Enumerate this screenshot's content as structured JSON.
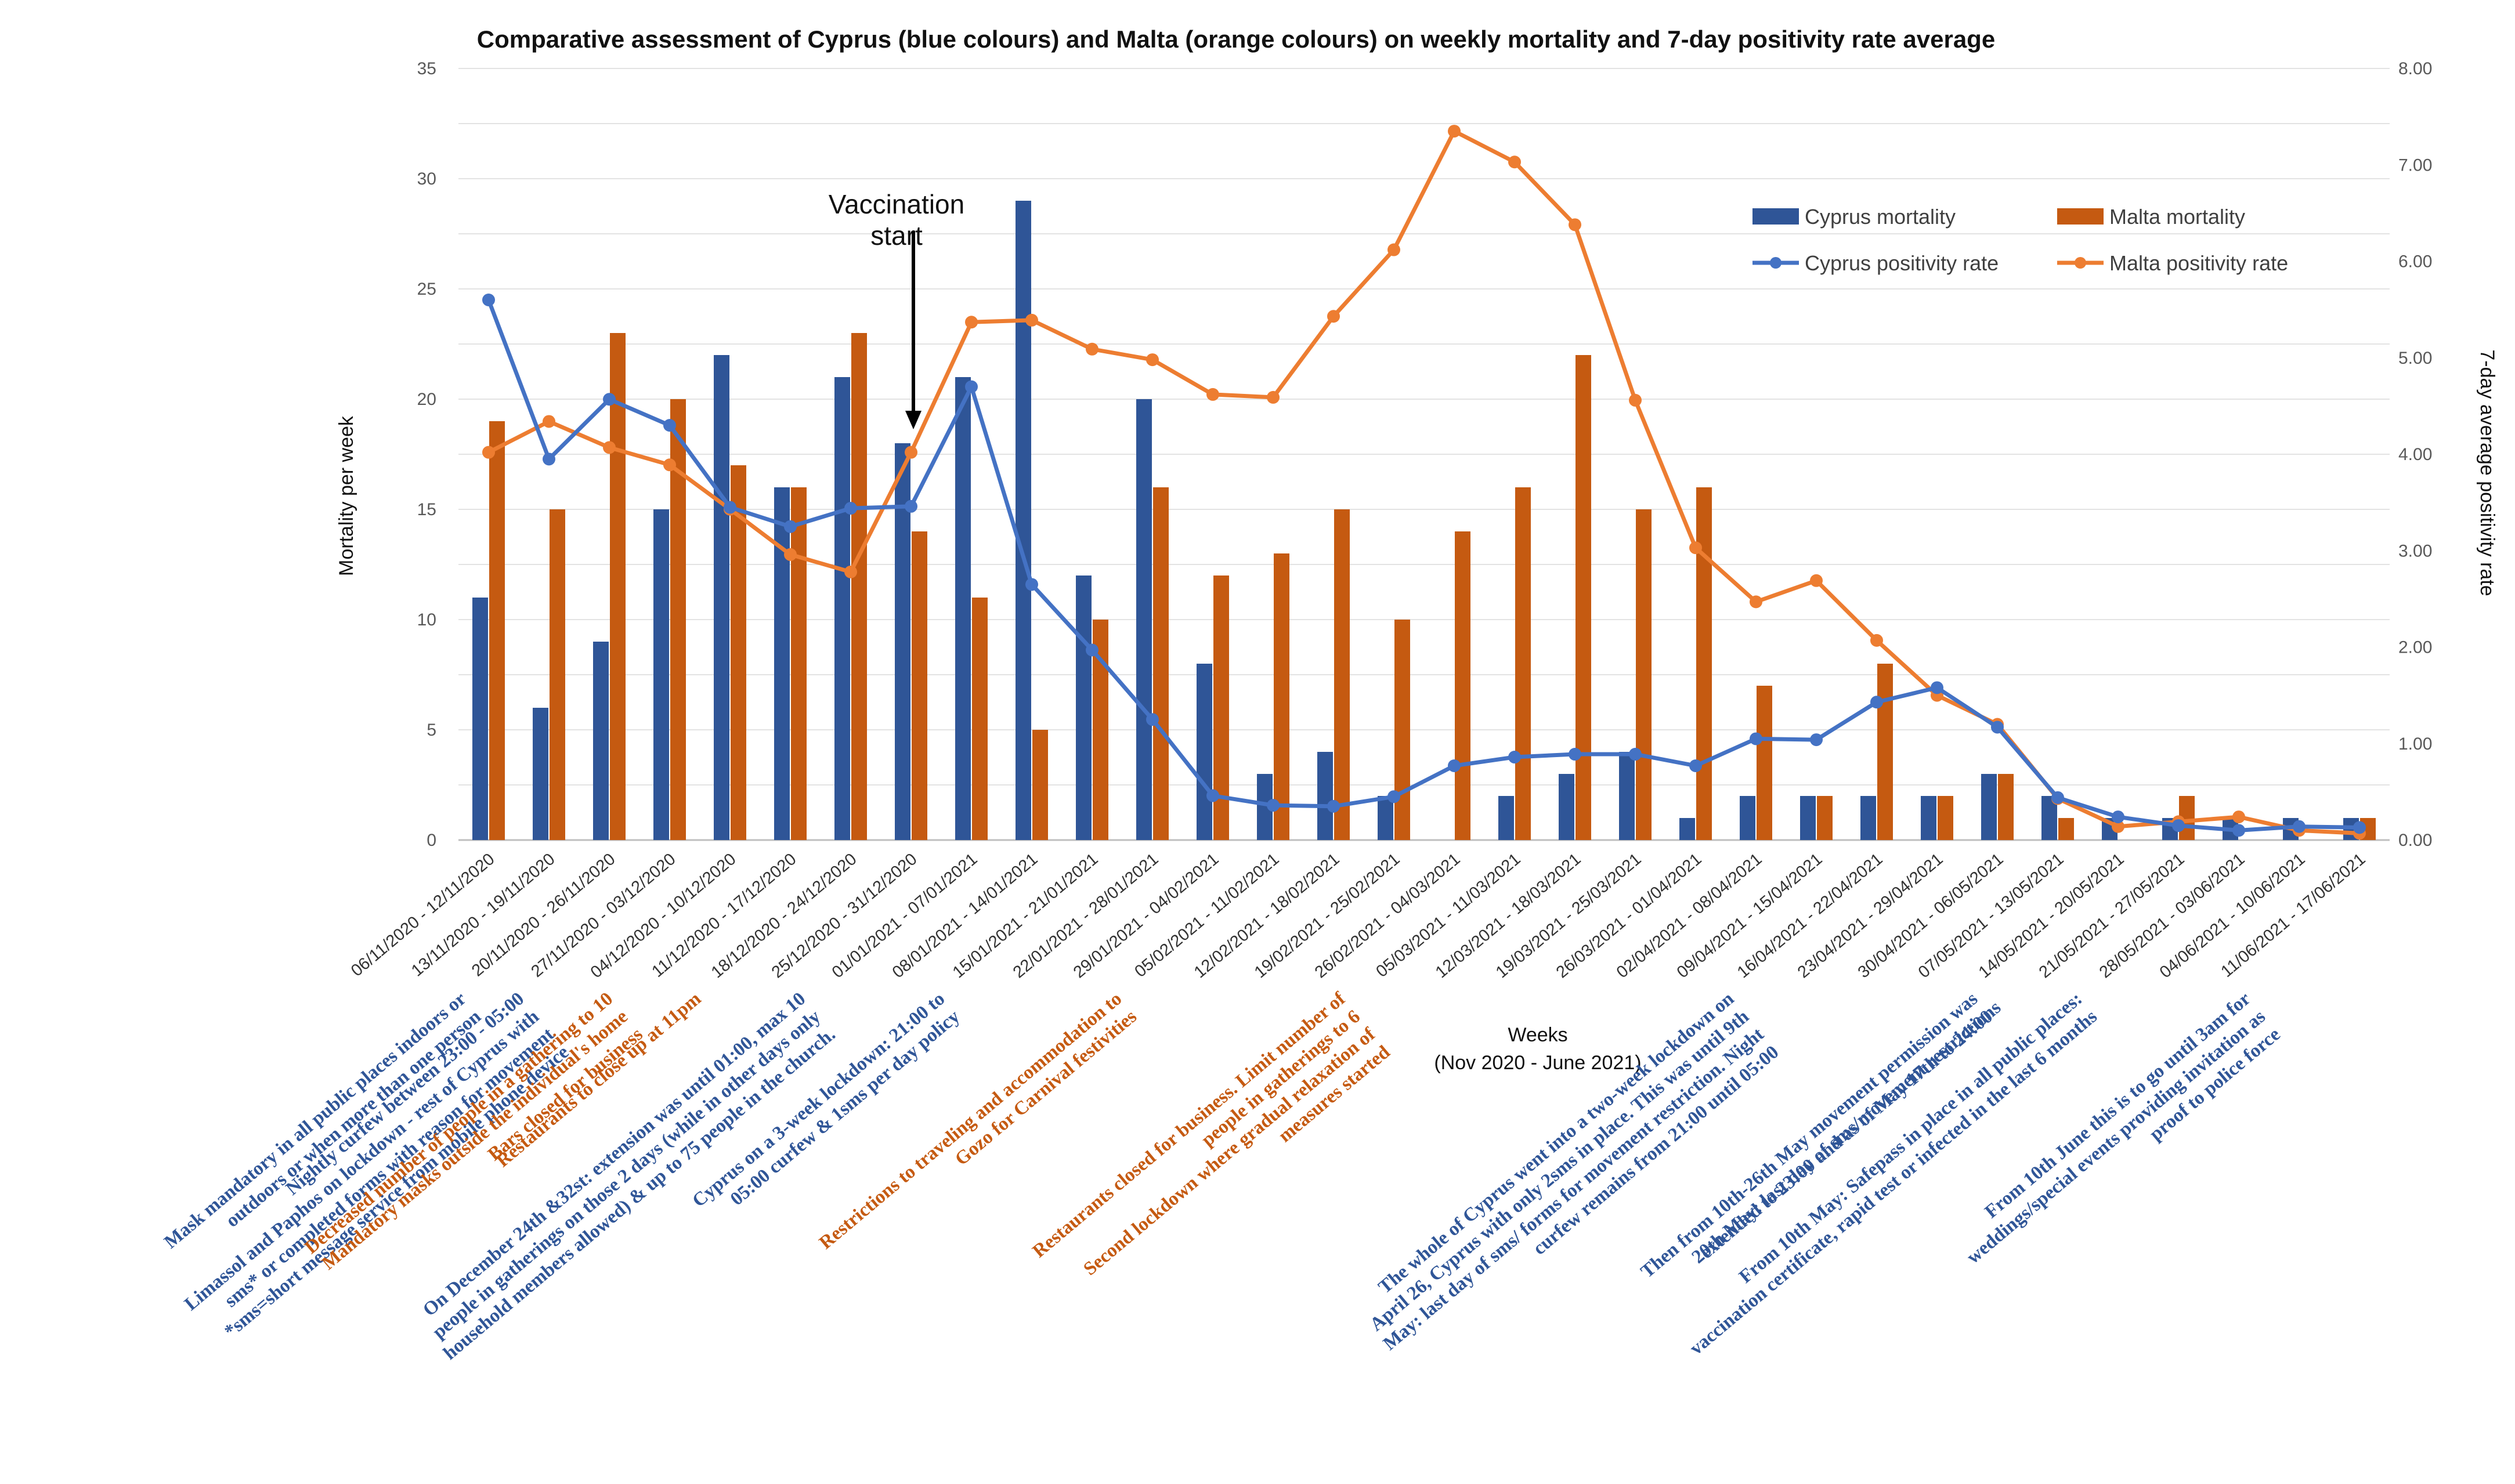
{
  "chart_data": {
    "type": "bar",
    "title": "Comparative assessment of Cyprus (blue colours) and Malta (orange colours) on weekly mortality and 7-day positivity rate average",
    "ylabel": "Mortality per week",
    "y2label": "7-day average positivity rate",
    "xlabel": "Weeks",
    "xlabel_sub": "(Nov 2020 - June 2021)",
    "ylim": [
      0,
      35
    ],
    "y2lim": [
      0,
      8
    ],
    "yticks": [
      "0",
      "5",
      "10",
      "15",
      "20",
      "25",
      "30",
      "35"
    ],
    "y2ticks": [
      "0.00",
      "1.00",
      "2.00",
      "3.00",
      "4.00",
      "5.00",
      "6.00",
      "7.00",
      "8.00"
    ],
    "colors": {
      "cyprus_bar": "#2F5597",
      "malta_bar": "#C55A11",
      "cyprus_line": "#4472C4",
      "malta_line": "#ED7D31",
      "annot_blue": "#2F5597",
      "annot_orange": "#C55A11"
    },
    "categories": [
      "06/11/2020 - 12/11/2020",
      "13/11/2020 - 19/11/2020",
      "20/11/2020 - 26/11/2020",
      "27/11/2020 - 03/12/2020",
      "04/12/2020 - 10/12/2020",
      "11/12/2020 - 17/12/2020",
      "18/12/2020 - 24/12/2020",
      "25/12/2020 - 31/12/2020",
      "01/01/2021 - 07/01/2021",
      "08/01/2021 - 14/01/2021",
      "15/01/2021 - 21/01/2021",
      "22/01/2021 - 28/01/2021",
      "29/01/2021 - 04/02/2021",
      "05/02/2021 - 11/02/2021",
      "12/02/2021 - 18/02/2021",
      "19/02/2021 - 25/02/2021",
      "26/02/2021 - 04/03/2021",
      "05/03/2021 - 11/03/2021",
      "12/03/2021 - 18/03/2021",
      "19/03/2021 - 25/03/2021",
      "26/03/2021 - 01/04/2021",
      "02/04/2021 - 08/04/2021",
      "09/04/2021 - 15/04/2021",
      "16/04/2021 - 22/04/2021",
      "23/04/2021 - 29/04/2021",
      "30/04/2021 - 06/05/2021",
      "07/05/2021 - 13/05/2021",
      "14/05/2021 - 20/05/2021",
      "21/05/2021 - 27/05/2021",
      "28/05/2021 - 03/06/2021",
      "04/06/2021 - 10/06/2021",
      "11/06/2021 - 17/06/2021"
    ],
    "series": [
      {
        "name": "Cyprus mortality",
        "kind": "bar",
        "axis": "left",
        "values": [
          11,
          6,
          9,
          15,
          22,
          16,
          21,
          18,
          21,
          29,
          12,
          20,
          8,
          3,
          4,
          2,
          0,
          2,
          3,
          4,
          1,
          2,
          2,
          2,
          2,
          3,
          2,
          1,
          1,
          1,
          1,
          1
        ]
      },
      {
        "name": "Malta mortality",
        "kind": "bar",
        "axis": "left",
        "values": [
          19,
          15,
          23,
          20,
          17,
          16,
          23,
          14,
          11,
          5,
          10,
          16,
          12,
          13,
          15,
          10,
          14,
          16,
          22,
          15,
          16,
          7,
          2,
          8,
          2,
          3,
          1,
          0,
          2,
          0,
          0,
          1
        ]
      },
      {
        "name": "Cyprus positivity rate",
        "kind": "line",
        "axis": "right",
        "values": [
          5.6,
          3.95,
          4.57,
          4.3,
          3.45,
          3.25,
          3.44,
          3.46,
          4.7,
          2.65,
          1.97,
          1.25,
          0.46,
          0.36,
          0.35,
          0.45,
          0.77,
          0.86,
          0.89,
          0.89,
          0.77,
          1.05,
          1.04,
          1.43,
          1.58,
          1.17,
          0.44,
          0.24,
          0.15,
          0.1,
          0.14,
          0.13
        ]
      },
      {
        "name": "Malta positivity rate",
        "kind": "line",
        "axis": "right",
        "values": [
          4.02,
          4.34,
          4.07,
          3.89,
          3.43,
          2.96,
          2.78,
          4.02,
          5.37,
          5.39,
          5.09,
          4.98,
          4.62,
          4.59,
          5.43,
          6.12,
          7.35,
          7.03,
          6.38,
          4.56,
          3.03,
          2.47,
          2.69,
          2.07,
          1.5,
          1.2,
          0.43,
          0.14,
          0.19,
          0.24,
          0.1,
          0.07
        ]
      }
    ],
    "legend": [
      {
        "label": "Cyprus mortality",
        "kind": "bar",
        "color": "#2F5597"
      },
      {
        "label": "Malta mortality",
        "kind": "bar",
        "color": "#C55A11"
      },
      {
        "label": "Cyprus positivity rate",
        "kind": "line",
        "color": "#4472C4"
      },
      {
        "label": "Malta positivity rate",
        "kind": "line",
        "color": "#ED7D31"
      }
    ],
    "vaccination_note": {
      "lines": [
        "Vaccination",
        "start"
      ],
      "week_index": 7
    },
    "annotations": [
      {
        "id": "a1",
        "color": "blue",
        "lines": [
          "Mask mandatory in all public places indoors or",
          "outdoors or when more than one person"
        ]
      },
      {
        "id": "a2",
        "color": "blue",
        "lines": [
          "Nightly curfew between 23:00 - 05:00",
          "Limassol and Paphos on lockdown - rest of Cyprus with",
          "sms* or completed forms with reason for movement",
          "*sms=short message service from mobile phone device"
        ]
      },
      {
        "id": "a3",
        "color": "orange",
        "lines": [
          "Decreased number of people in a gathering to 10",
          "Mandatory masks outside the individual's home",
          "Bars closed for business"
        ]
      },
      {
        "id": "a4",
        "color": "orange",
        "lines": [
          "Restaurants to close up at 11pm"
        ]
      },
      {
        "id": "a5",
        "color": "blue",
        "lines": [
          "On December 24th &32st: extension was until 01:00, max 10",
          "people in gatherings on those 2 days (while in other days only",
          "household members allowed) & up to 75 people in the church."
        ]
      },
      {
        "id": "a6",
        "color": "blue",
        "lines": [
          "Cyprus on a 3-week lockdown: 21:00 to",
          "05:00 curfew & 1sms per day policy"
        ]
      },
      {
        "id": "a7",
        "color": "orange",
        "lines": [
          "Restrictions to traveling and accommodation to",
          "Gozo for Carnival festivities"
        ]
      },
      {
        "id": "a8",
        "color": "orange",
        "lines": [
          "Restaurants closed for business. Limit number of",
          "people in gatherings to 6",
          "Second lockdown where gradual relaxation of",
          "measures started"
        ]
      },
      {
        "id": "a9",
        "color": "blue",
        "lines": [
          "The whole of Cyprus went into a two-week lockdown on",
          "April 26, Cyprus with only 2sms in place. This was until 9th",
          "May: last day of sms/ forms for movement restriction. Night",
          "curfew remains from 21:00 until 05:00"
        ]
      },
      {
        "id": "a10",
        "color": "blue",
        "lines": [
          "Then from 10th-26th May movement permission was",
          "extended to 23:00 and as of May 17th to 24:00"
        ]
      },
      {
        "id": "a11",
        "color": "blue",
        "lines": [
          "20th May: last day of sms/movement restrictions"
        ]
      },
      {
        "id": "a12",
        "color": "blue",
        "lines": [
          "From 10th May: Safepass in place in all public places:",
          "vaccination certificate, rapid test or infected in the last 6 months"
        ]
      },
      {
        "id": "a13",
        "color": "blue",
        "lines": [
          "From 10th June this is to go until 3am for",
          "weddings/special events providing invitation as",
          "proof to police force"
        ]
      }
    ]
  }
}
